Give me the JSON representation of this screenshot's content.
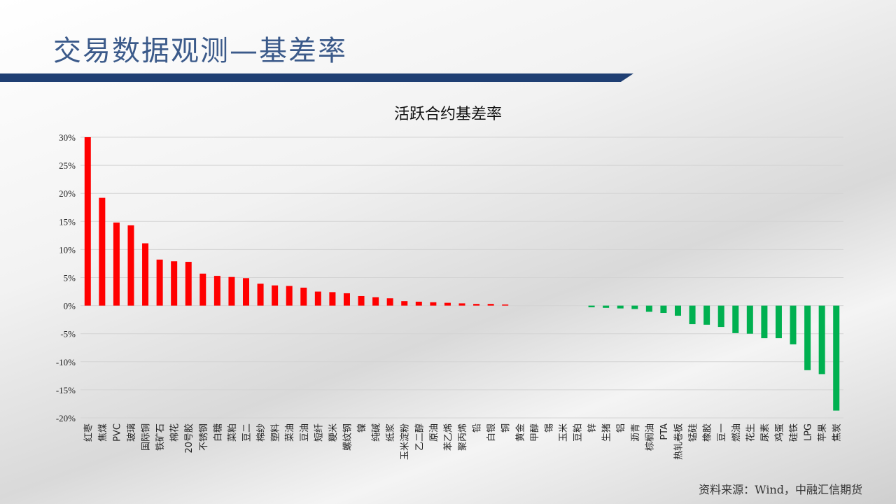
{
  "header": {
    "title": "交易数据观测—基差率"
  },
  "source": "资料来源：Wind，中融汇信期货",
  "colors": {
    "positive": "#ff0000",
    "negative": "#00b050",
    "title_band": "#1f3f73"
  },
  "chart_data": {
    "type": "bar",
    "title": "活跃合约基差率",
    "xlabel": "",
    "ylabel": "",
    "ylim": [
      -20,
      30
    ],
    "yticks": [
      30,
      25,
      20,
      15,
      10,
      5,
      0,
      -5,
      -10,
      -15,
      -20
    ],
    "ytick_labels": [
      "30%",
      "25%",
      "20%",
      "15%",
      "10%",
      "5%",
      "0%",
      "-5%",
      "-10%",
      "-15%",
      "-20%"
    ],
    "grid": true,
    "categories": [
      "红枣",
      "焦煤",
      "PVC",
      "玻璃",
      "国际铜",
      "铁矿石",
      "棉花",
      "20号胶",
      "不锈钢",
      "白糖",
      "菜粕",
      "豆二",
      "棉纱",
      "塑料",
      "菜油",
      "豆油",
      "短纤",
      "粳米",
      "螺纹钢",
      "镍",
      "纯碱",
      "纸浆",
      "玉米淀粉",
      "乙二醇",
      "原油",
      "苯乙烯",
      "聚丙烯",
      "铅",
      "白银",
      "铜",
      "黄金",
      "甲醇",
      "锡",
      "玉米",
      "豆粕",
      "锌",
      "生猪",
      "铝",
      "沥青",
      "棕榈油",
      "PTA",
      "热轧卷板",
      "锰硅",
      "橡胶",
      "豆一",
      "燃油",
      "花生",
      "尿素",
      "鸡蛋",
      "硅铁",
      "LPG",
      "苹果",
      "焦炭"
    ],
    "values": [
      30,
      19.2,
      14.8,
      14.3,
      11.1,
      8.2,
      7.9,
      7.8,
      5.7,
      5.3,
      5.1,
      4.9,
      3.9,
      3.6,
      3.5,
      3.2,
      2.5,
      2.4,
      2.2,
      1.7,
      1.5,
      1.3,
      0.8,
      0.7,
      0.6,
      0.5,
      0.4,
      0.3,
      0.3,
      0.2,
      0,
      0,
      0,
      0,
      0,
      -0.3,
      -0.4,
      -0.5,
      -0.6,
      -1.1,
      -1.3,
      -1.8,
      -3.3,
      -3.4,
      -3.8,
      -4.9,
      -5.0,
      -5.8,
      -5.8,
      -6.9,
      -11.5,
      -12.2,
      -18.7
    ]
  }
}
